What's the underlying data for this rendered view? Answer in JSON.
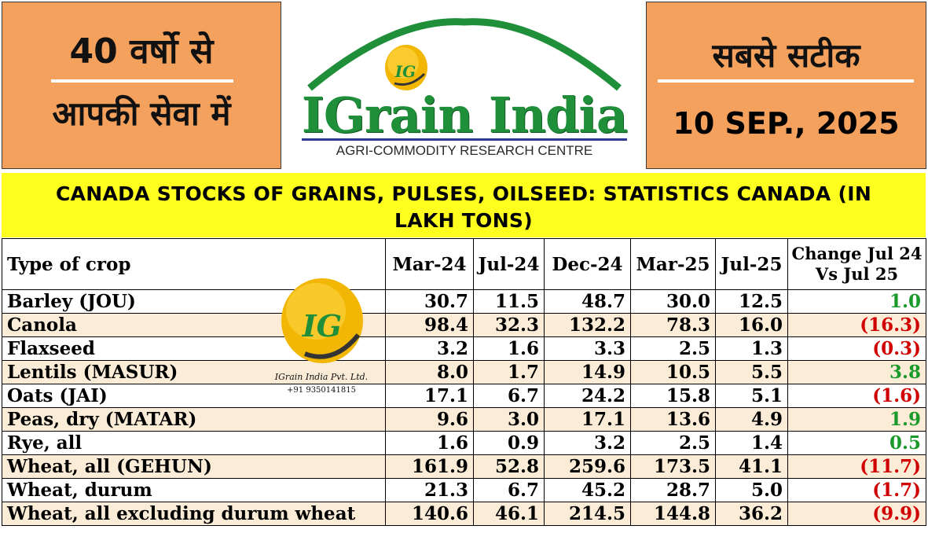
{
  "header": {
    "left_line1": "40 वर्षो से",
    "left_line2": "आपकी सेवा में",
    "right_line1": "सबसे सटीक",
    "date": "10 SEP., 2025"
  },
  "logo": {
    "brand": "IGrain India",
    "tagline": "AGRI-COMMODITY RESEARCH CENTRE",
    "badge_text": "IG",
    "colors": {
      "green": "#1f8f3a",
      "gold": "#f2b705",
      "navy": "#2b3a8f"
    }
  },
  "title": "CANADA STOCKS OF GRAINS, PULSES, OILSEED: STATISTICS CANADA (IN LAKH TONS)",
  "table": {
    "headers": [
      "Type of crop",
      "Mar-24",
      "Jul-24",
      "Dec-24",
      "Mar-25",
      "Jul-25",
      "Change Jul 24 Vs Jul 25"
    ],
    "rows": [
      {
        "crop": "Barley (JOU)",
        "values": [
          "30.7",
          "11.5",
          "48.7",
          "30.0",
          "12.5"
        ],
        "change": "1.0",
        "change_sign": "pos"
      },
      {
        "crop": "Canola",
        "values": [
          "98.4",
          "32.3",
          "132.2",
          "78.3",
          "16.0"
        ],
        "change": "(16.3)",
        "change_sign": "neg"
      },
      {
        "crop": "Flaxseed",
        "values": [
          "3.2",
          "1.6",
          "3.3",
          "2.5",
          "1.3"
        ],
        "change": "(0.3)",
        "change_sign": "neg"
      },
      {
        "crop": "Lentils (MASUR)",
        "values": [
          "8.0",
          "1.7",
          "14.9",
          "10.5",
          "5.5"
        ],
        "change": "3.8",
        "change_sign": "pos"
      },
      {
        "crop": "Oats (JAI)",
        "values": [
          "17.1",
          "6.7",
          "24.2",
          "15.8",
          "5.1"
        ],
        "change": "(1.6)",
        "change_sign": "neg"
      },
      {
        "crop": "Peas, dry (MATAR)",
        "values": [
          "9.6",
          "3.0",
          "17.1",
          "13.6",
          "4.9"
        ],
        "change": "1.9",
        "change_sign": "pos"
      },
      {
        "crop": "Rye, all",
        "values": [
          "1.6",
          "0.9",
          "3.2",
          "2.5",
          "1.4"
        ],
        "change": "0.5",
        "change_sign": "pos"
      },
      {
        "crop": "Wheat, all (GEHUN)",
        "values": [
          "161.9",
          "52.8",
          "259.6",
          "173.5",
          "41.1"
        ],
        "change": "(11.7)",
        "change_sign": "neg"
      },
      {
        "crop": "Wheat, durum",
        "values": [
          "21.3",
          "6.7",
          "45.2",
          "28.7",
          "5.0"
        ],
        "change": "(1.7)",
        "change_sign": "neg"
      },
      {
        "crop": "Wheat, all excluding durum wheat",
        "values": [
          "140.6",
          "46.1",
          "214.5",
          "144.8",
          "36.2"
        ],
        "change": "(9.9)",
        "change_sign": "neg"
      }
    ],
    "colors": {
      "positive": "#1a9a2a",
      "negative": "#d00000",
      "stripe": "#fbecd8"
    }
  },
  "watermark": {
    "badge_text": "IG",
    "company": "IGrain India Pvt. Ltd.",
    "phone": "+91 9350141815"
  }
}
